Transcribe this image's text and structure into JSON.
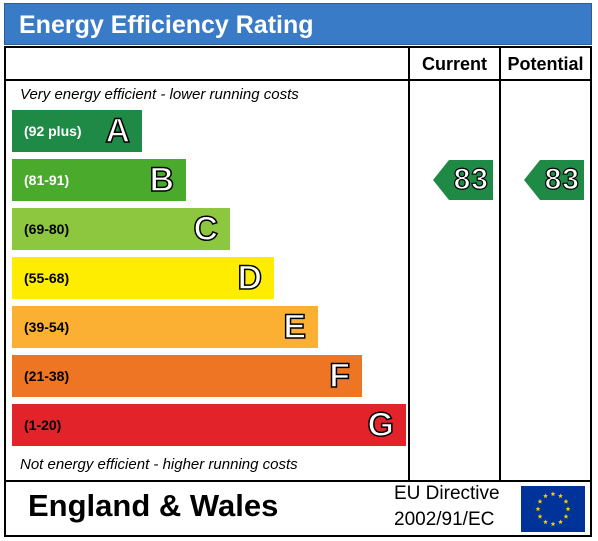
{
  "header": {
    "title": "Energy Efficiency Rating"
  },
  "columns": {
    "current": "Current",
    "potential": "Potential"
  },
  "captions": {
    "top": "Very energy efficient - lower running costs",
    "bottom": "Not energy efficient - higher running costs"
  },
  "chart_data": {
    "type": "bar",
    "title": "Energy Efficiency Rating",
    "categories": [
      "A",
      "B",
      "C",
      "D",
      "E",
      "F",
      "G"
    ],
    "bands": [
      {
        "letter": "A",
        "range": "(92 plus)",
        "min": 92,
        "max": 100,
        "color": "#1f8a45",
        "text_color": "#ffffff"
      },
      {
        "letter": "B",
        "range": "(81-91)",
        "min": 81,
        "max": 91,
        "color": "#4aaa2c",
        "text_color": "#ffffff"
      },
      {
        "letter": "C",
        "range": "(69-80)",
        "min": 69,
        "max": 80,
        "color": "#8dc63f",
        "text_color": "#000000"
      },
      {
        "letter": "D",
        "range": "(55-68)",
        "min": 55,
        "max": 68,
        "color": "#ffed00",
        "text_color": "#000000"
      },
      {
        "letter": "E",
        "range": "(39-54)",
        "min": 39,
        "max": 54,
        "color": "#fbb034",
        "text_color": "#000000"
      },
      {
        "letter": "F",
        "range": "(21-38)",
        "min": 21,
        "max": 38,
        "color": "#ee7523",
        "text_color": "#000000"
      },
      {
        "letter": "G",
        "range": "(1-20)",
        "min": 1,
        "max": 20,
        "color": "#e2232a",
        "text_color": "#000000"
      }
    ],
    "series": [
      {
        "name": "Current",
        "value": 83,
        "band": "B"
      },
      {
        "name": "Potential",
        "value": 83,
        "band": "B"
      }
    ],
    "arrow_color": "#1f8a45"
  },
  "footer": {
    "region": "England & Wales",
    "directive_line1": "EU Directive",
    "directive_line2": "2002/91/EC",
    "flag_blue": "#003399",
    "flag_star": "#ffcc00"
  }
}
